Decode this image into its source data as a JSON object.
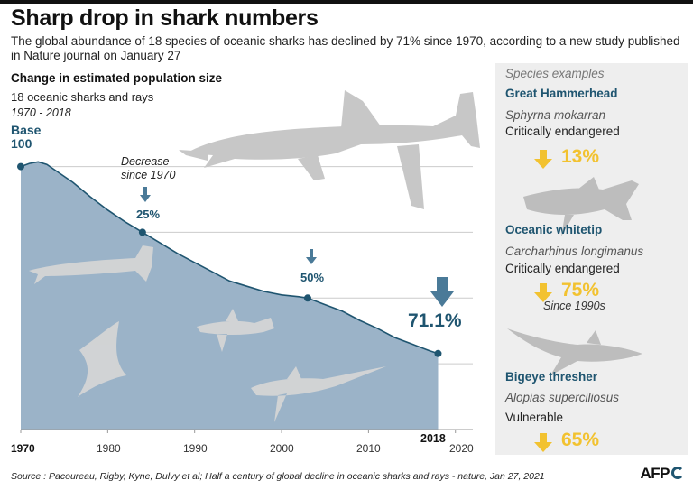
{
  "header": {
    "title": "Sharp drop in shark numbers",
    "subtitle": "The global abundance of 18 species of oceanic sharks has declined by 71% since 1970, according to a new study published in Nature journal on January 27"
  },
  "chart_data": {
    "type": "area",
    "title": "Change in estimated population size",
    "subtitle": "18 oceanic sharks and rays",
    "period": "1970 - 2018",
    "base_label": "Base",
    "base_value_label": "100",
    "x": [
      1970,
      1971,
      1972,
      1973,
      1974,
      1976,
      1978,
      1980,
      1982,
      1984,
      1986,
      1988,
      1990,
      1992,
      1994,
      1996,
      1998,
      2000,
      2002,
      2003,
      2005,
      2007,
      2009,
      2011,
      2013,
      2015,
      2017,
      2018
    ],
    "y": [
      100,
      101.2,
      101.8,
      100.8,
      98.5,
      94.0,
      88.5,
      83.5,
      79.0,
      75.0,
      71.0,
      67.0,
      63.5,
      60.0,
      56.5,
      54.5,
      52.5,
      51.2,
      50.5,
      50.0,
      47.5,
      45.0,
      41.5,
      38.5,
      35.0,
      32.5,
      30.0,
      28.9
    ],
    "xlim": [
      1970,
      2022
    ],
    "ylim": [
      0,
      105
    ],
    "xticks": [
      "1970",
      "1980",
      "1990",
      "2000",
      "2010",
      "2020"
    ],
    "bold_xticks": [
      "1970"
    ],
    "end_year_label": "2018",
    "markers": [
      {
        "x": 1970,
        "y": 100
      },
      {
        "x": 1984,
        "y": 75
      },
      {
        "x": 2003,
        "y": 50
      },
      {
        "x": 2018,
        "y": 28.9
      }
    ],
    "annotations": [
      {
        "x": 1984,
        "y": 75,
        "label": "25%",
        "note": "Decrease\nsince 1970"
      },
      {
        "x": 2003,
        "y": 50,
        "label": "50%"
      },
      {
        "x": 2018,
        "y": 28.9,
        "label": "71.1%"
      }
    ],
    "grid": true,
    "colors": {
      "fill": "#9bb3c8",
      "line": "#1f5570",
      "accent": "#1f5570",
      "grid": "#cccccc"
    }
  },
  "species": {
    "header": "Species examples",
    "items": [
      {
        "name": "Great Hammerhead",
        "latin": "Sphyrna mokarran",
        "status": "Critically endangered",
        "decline": "13%",
        "note": ""
      },
      {
        "name": "Oceanic whitetip",
        "latin": "Carcharhinus longimanus",
        "status": "Critically endangered",
        "decline": "75%",
        "note": "Since 1990s"
      },
      {
        "name": "Bigeye thresher",
        "latin": "Alopias superciliosus",
        "status": "Vulnerable",
        "decline": "65%",
        "note": ""
      }
    ],
    "decline_color": "#f2c230"
  },
  "footer": {
    "source": "Source : Pacoureau, Rigby, Kyne, Dulvy et al; Half a century of global decline in oceanic sharks and rays - nature, Jan 27, 2021",
    "logo": "AFP"
  }
}
